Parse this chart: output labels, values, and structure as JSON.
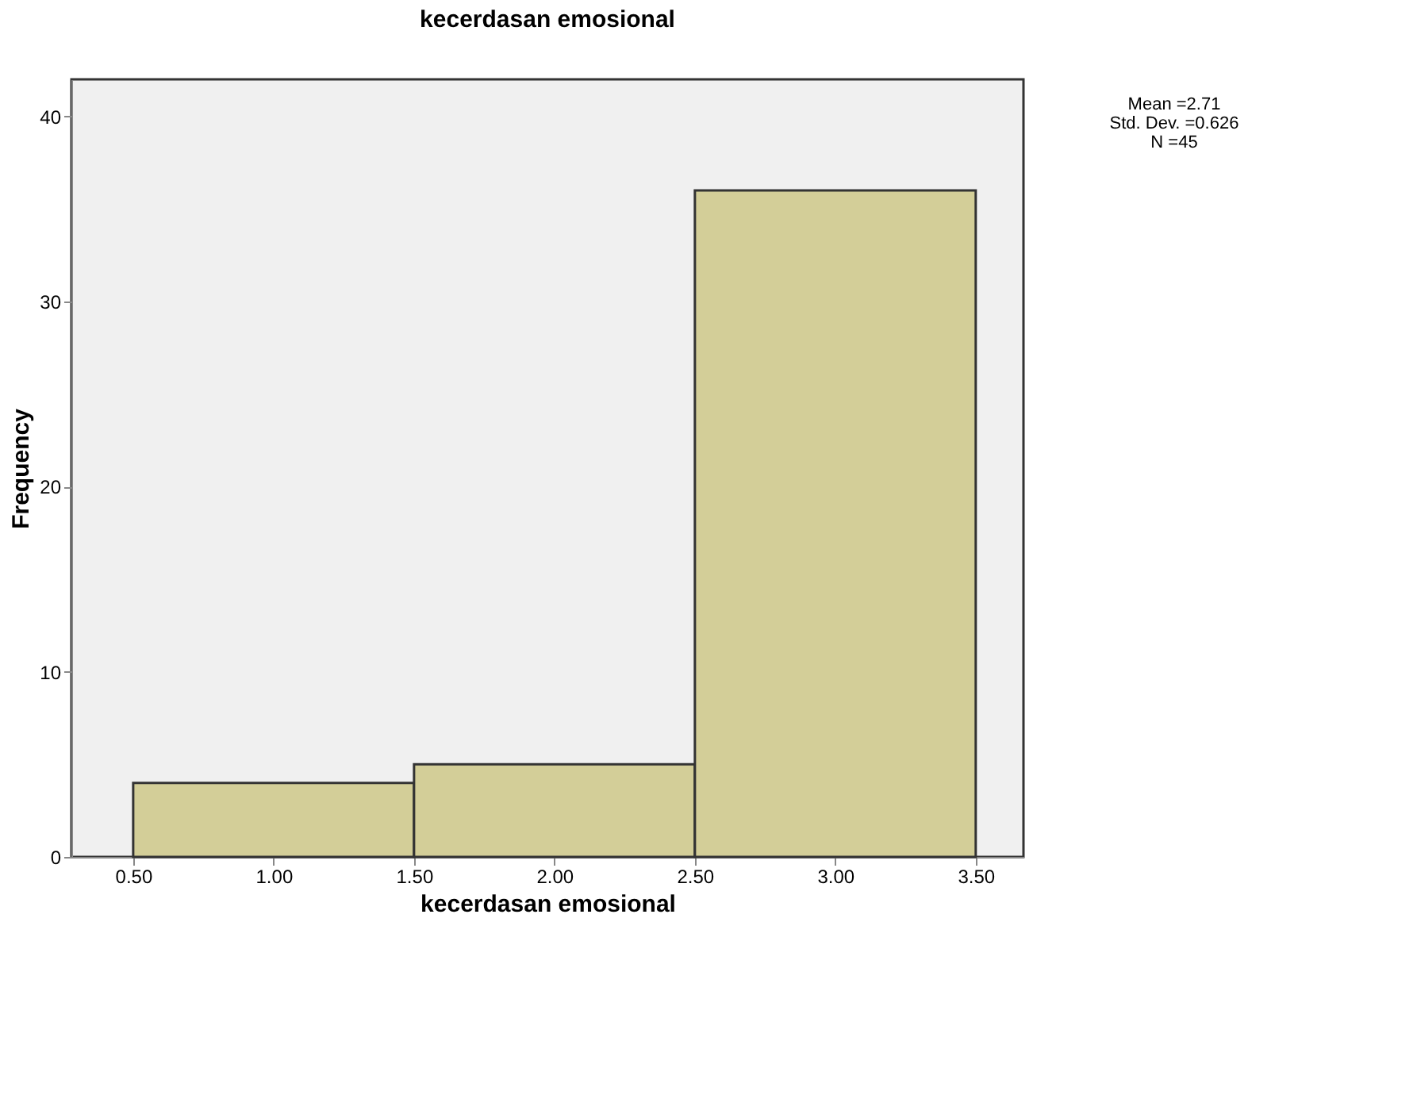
{
  "chart_data": {
    "type": "histogram",
    "title": "kecerdasan emosional",
    "xlabel": "kecerdasan emosional",
    "ylabel": "Frequency",
    "bins": [
      0.5,
      1.5,
      2.5,
      3.5
    ],
    "values": [
      4,
      5,
      36
    ],
    "color": "#d3ce98",
    "xlim": [
      0.28,
      3.67
    ],
    "xticks": [
      {
        "value": 0.5,
        "label": "0.50"
      },
      {
        "value": 1.0,
        "label": "1.00"
      },
      {
        "value": 1.5,
        "label": "1.50"
      },
      {
        "value": 2.0,
        "label": "2.00"
      },
      {
        "value": 2.5,
        "label": "2.50"
      },
      {
        "value": 3.0,
        "label": "3.00"
      },
      {
        "value": 3.5,
        "label": "3.50"
      }
    ],
    "ylim": [
      0,
      42
    ],
    "yticks": [
      0,
      10,
      20,
      30,
      40
    ],
    "grid": false,
    "annotations": [
      "Mean =2.71\nStd. Dev. =0.626\nN =45"
    ]
  }
}
